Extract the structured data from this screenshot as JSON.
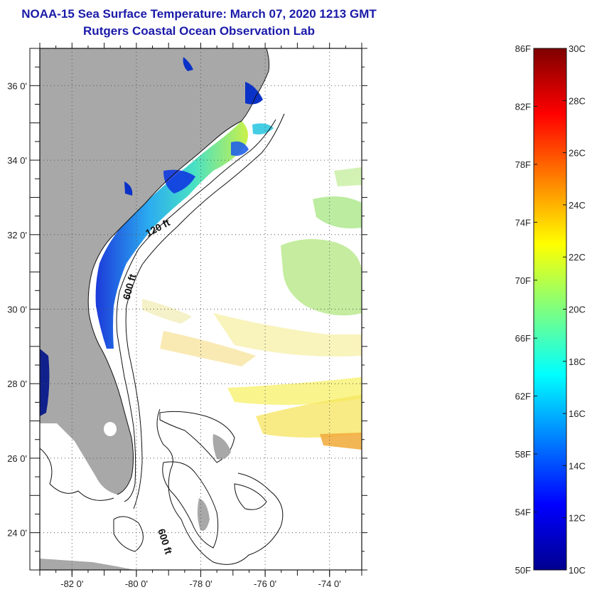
{
  "title": "NOAA-15 Sea Surface Temperature:  March 07, 2020 1213 GMT",
  "subtitle": "Rutgers Coastal Ocean Observation Lab",
  "map": {
    "lon_range": [
      -83,
      -73
    ],
    "lat_range": [
      23,
      37
    ],
    "lon_ticks": [
      -82,
      -80,
      -78,
      -76,
      -74
    ],
    "lat_ticks": [
      24,
      26,
      28,
      30,
      32,
      34,
      36
    ],
    "lon_tick_labels": [
      "-82 0'",
      "-80 0'",
      "-78 0'",
      "-76 0'",
      "-74 0'"
    ],
    "lat_tick_labels": [
      "24 0'",
      "26 0'",
      "28 0'",
      "30 0'",
      "32 0'",
      "34 0'",
      "36 0'"
    ],
    "grid": "dotted",
    "land_color": "#a8a8a8",
    "contour_labels": [
      "120 ft",
      "600 ft",
      "600 ft"
    ]
  },
  "colorbar": {
    "f_labels": [
      "86F",
      "82F",
      "78F",
      "74F",
      "70F",
      "66F",
      "62F",
      "58F",
      "54F",
      "50F"
    ],
    "c_labels": [
      "30C",
      "28C",
      "26C",
      "24C",
      "22C",
      "20C",
      "18C",
      "16C",
      "14C",
      "12C",
      "10C"
    ],
    "range_c": [
      10,
      30
    ],
    "colormap": "jet"
  }
}
